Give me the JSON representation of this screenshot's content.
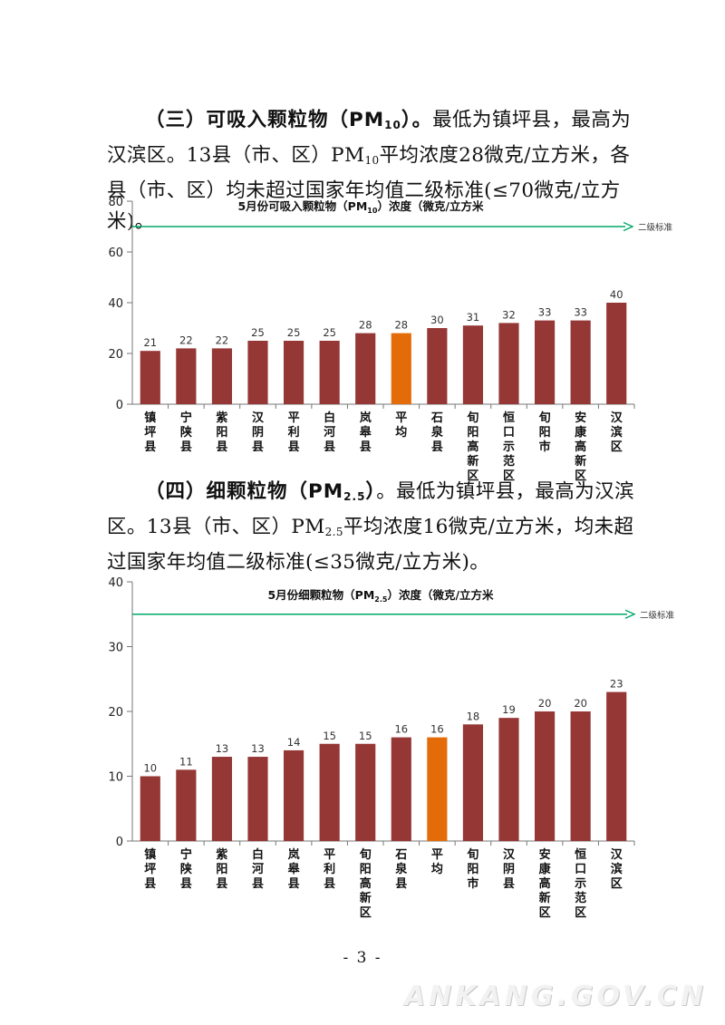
{
  "section3": {
    "heading_pre": "（三）可吸入颗粒物（PM",
    "heading_sub": "10",
    "heading_post": "）。",
    "text1": "最低为镇坪县，最高为汉滨区。13县（市、区）PM",
    "text_sub": "10",
    "text2": "平均浓度28微克/立方米，各县（市、区）均未超过国家年均值二级标准(≤70微克/立方米)。"
  },
  "section4": {
    "heading_pre": "（四）细颗粒物（PM",
    "heading_sub": "2.5",
    "heading_post": "）",
    "text1": "。最低为镇坪县，最高为汉滨区。13县（市、区）PM",
    "text_sub": "2.5",
    "text2": "平均浓度16微克/立方米，均未超过国家年均值二级标准(≤35微克/立方米)。"
  },
  "chart_data": [
    {
      "type": "bar",
      "title": "5月份可吸入颗粒物（PM10）浓度（微克/立方米",
      "title_pre": "5月份可吸入颗粒物（PM",
      "title_sub": "10",
      "title_post": "）浓度（微克/立方米",
      "categories": [
        "镇坪县",
        "宁陕县",
        "紫阳县",
        "汉阴县",
        "平利县",
        "白河县",
        "岚皋县",
        "平均",
        "石泉县",
        "旬阳高新区",
        "恒口示范区",
        "旬阳市",
        "安康高新区",
        "汉滨区"
      ],
      "values": [
        21,
        22,
        22,
        25,
        25,
        25,
        28,
        28,
        30,
        31,
        32,
        33,
        33,
        40
      ],
      "highlight_index": 7,
      "yticks": [
        0,
        20,
        40,
        60,
        80
      ],
      "ylim": [
        0,
        80
      ],
      "reference_line": {
        "value": 70,
        "label": "二级标准"
      },
      "colors": {
        "bar": "#953735",
        "highlight": "#E36C09",
        "line": "#00A86B"
      }
    },
    {
      "type": "bar",
      "title": "5月份细颗粒物（PM2.5）浓度（微克/立方米",
      "title_pre": "5月份细颗粒物（PM",
      "title_sub": "2.5",
      "title_post": "）浓度（微克/立方米",
      "categories": [
        "镇坪县",
        "宁陕县",
        "紫阳县",
        "白河县",
        "岚皋县",
        "平利县",
        "旬阳高新区",
        "石泉县",
        "平均",
        "旬阳市",
        "汉阴县",
        "安康高新区",
        "恒口示范区",
        "汉滨区"
      ],
      "values": [
        10,
        11,
        13,
        13,
        14,
        15,
        15,
        16,
        16,
        18,
        19,
        20,
        20,
        23
      ],
      "highlight_index": 8,
      "yticks": [
        0,
        10,
        20,
        30,
        40
      ],
      "ylim": [
        0,
        40
      ],
      "reference_line": {
        "value": 35,
        "label": "二级标准"
      },
      "colors": {
        "bar": "#953735",
        "highlight": "#E36C09",
        "line": "#00A86B"
      }
    }
  ],
  "footer": {
    "page_number": "- 3 -",
    "watermark": "ANKANG.GOV.CN"
  }
}
